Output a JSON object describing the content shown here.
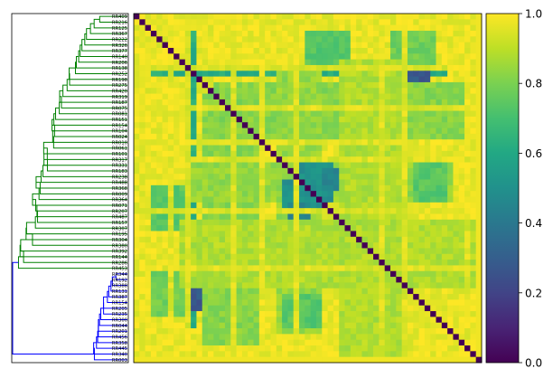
{
  "chart_data": {
    "type": "heatmap",
    "title": "",
    "xlabel": "",
    "ylabel": "",
    "colormap": "viridis",
    "colorbar": {
      "vmin": 0.0,
      "vmax": 1.0,
      "ticks": [
        "0.0",
        "0.2",
        "0.4",
        "0.6",
        "0.8",
        "1.0"
      ]
    },
    "row_labels": [
      "RR409",
      "RR216",
      "RR125",
      "RR367",
      "RR222",
      "RR326",
      "RR377",
      "RR140",
      "RR206",
      "RR138",
      "RR252",
      "RR198",
      "RR275",
      "RR420",
      "RR319",
      "RR187",
      "RR075",
      "RR081",
      "RR151",
      "RR154",
      "RR104",
      "RR024",
      "RR010",
      "RR061",
      "RR101",
      "RR317",
      "RR331",
      "RR183",
      "RR238",
      "RR488",
      "RR368",
      "RR009",
      "RR364",
      "RR071",
      "RR207",
      "RR487",
      "RR157",
      "RR307",
      "RR195",
      "RR304",
      "RR380",
      "RR392",
      "RR144",
      "RR286",
      "RR453",
      "RR344",
      "RR192",
      "RR388",
      "RR131",
      "RR387",
      "RR154",
      "RR205",
      "RR235",
      "RR300",
      "RR044",
      "RR201",
      "RR456",
      "RR358",
      "RR445",
      "RR340",
      "RR003"
    ],
    "dendrogram": {
      "clusters": [
        {
          "name": "green",
          "color": "#008000",
          "leaf_count": 45
        },
        {
          "name": "blue",
          "color": "#0000ff",
          "leaf_count": 16
        }
      ]
    },
    "diagonal_value": 0.0,
    "base_value": 0.97,
    "bottom_band_value": 0.98,
    "blocks": [
      {
        "rows": [
          3,
          9
        ],
        "cols": [
          30,
          38
        ],
        "value": 0.74
      },
      {
        "rows": [
          3,
          9
        ],
        "cols": [
          45,
          53
        ],
        "value": 0.78
      },
      {
        "rows": [
          9,
          11
        ],
        "cols": [
          3,
          55
        ],
        "value": 0.62
      },
      {
        "rows": [
          10,
          17
        ],
        "cols": [
          46,
          52
        ],
        "value": 0.28
      },
      {
        "rows": [
          12,
          22
        ],
        "cols": [
          14,
          58
        ],
        "value": 0.82
      },
      {
        "rows": [
          22,
          25
        ],
        "cols": [
          37,
          42
        ],
        "value": 0.55
      },
      {
        "rows": [
          25,
          33
        ],
        "cols": [
          10,
          56
        ],
        "value": 0.84
      },
      {
        "rows": [
          26,
          33
        ],
        "cols": [
          29,
          35
        ],
        "value": 0.5
      },
      {
        "rows": [
          26,
          33
        ],
        "cols": [
          49,
          55
        ],
        "value": 0.74
      },
      {
        "rows": [
          33,
          36
        ],
        "cols": [
          27,
          31
        ],
        "value": 0.45
      },
      {
        "rows": [
          36,
          48
        ],
        "cols": [
          8,
          60
        ],
        "value": 0.88
      }
    ],
    "bright_columns": [
      1,
      6,
      9,
      17,
      22,
      28,
      43,
      47,
      58
    ],
    "bright_rows": [
      9,
      16,
      22,
      25,
      34,
      44
    ]
  }
}
